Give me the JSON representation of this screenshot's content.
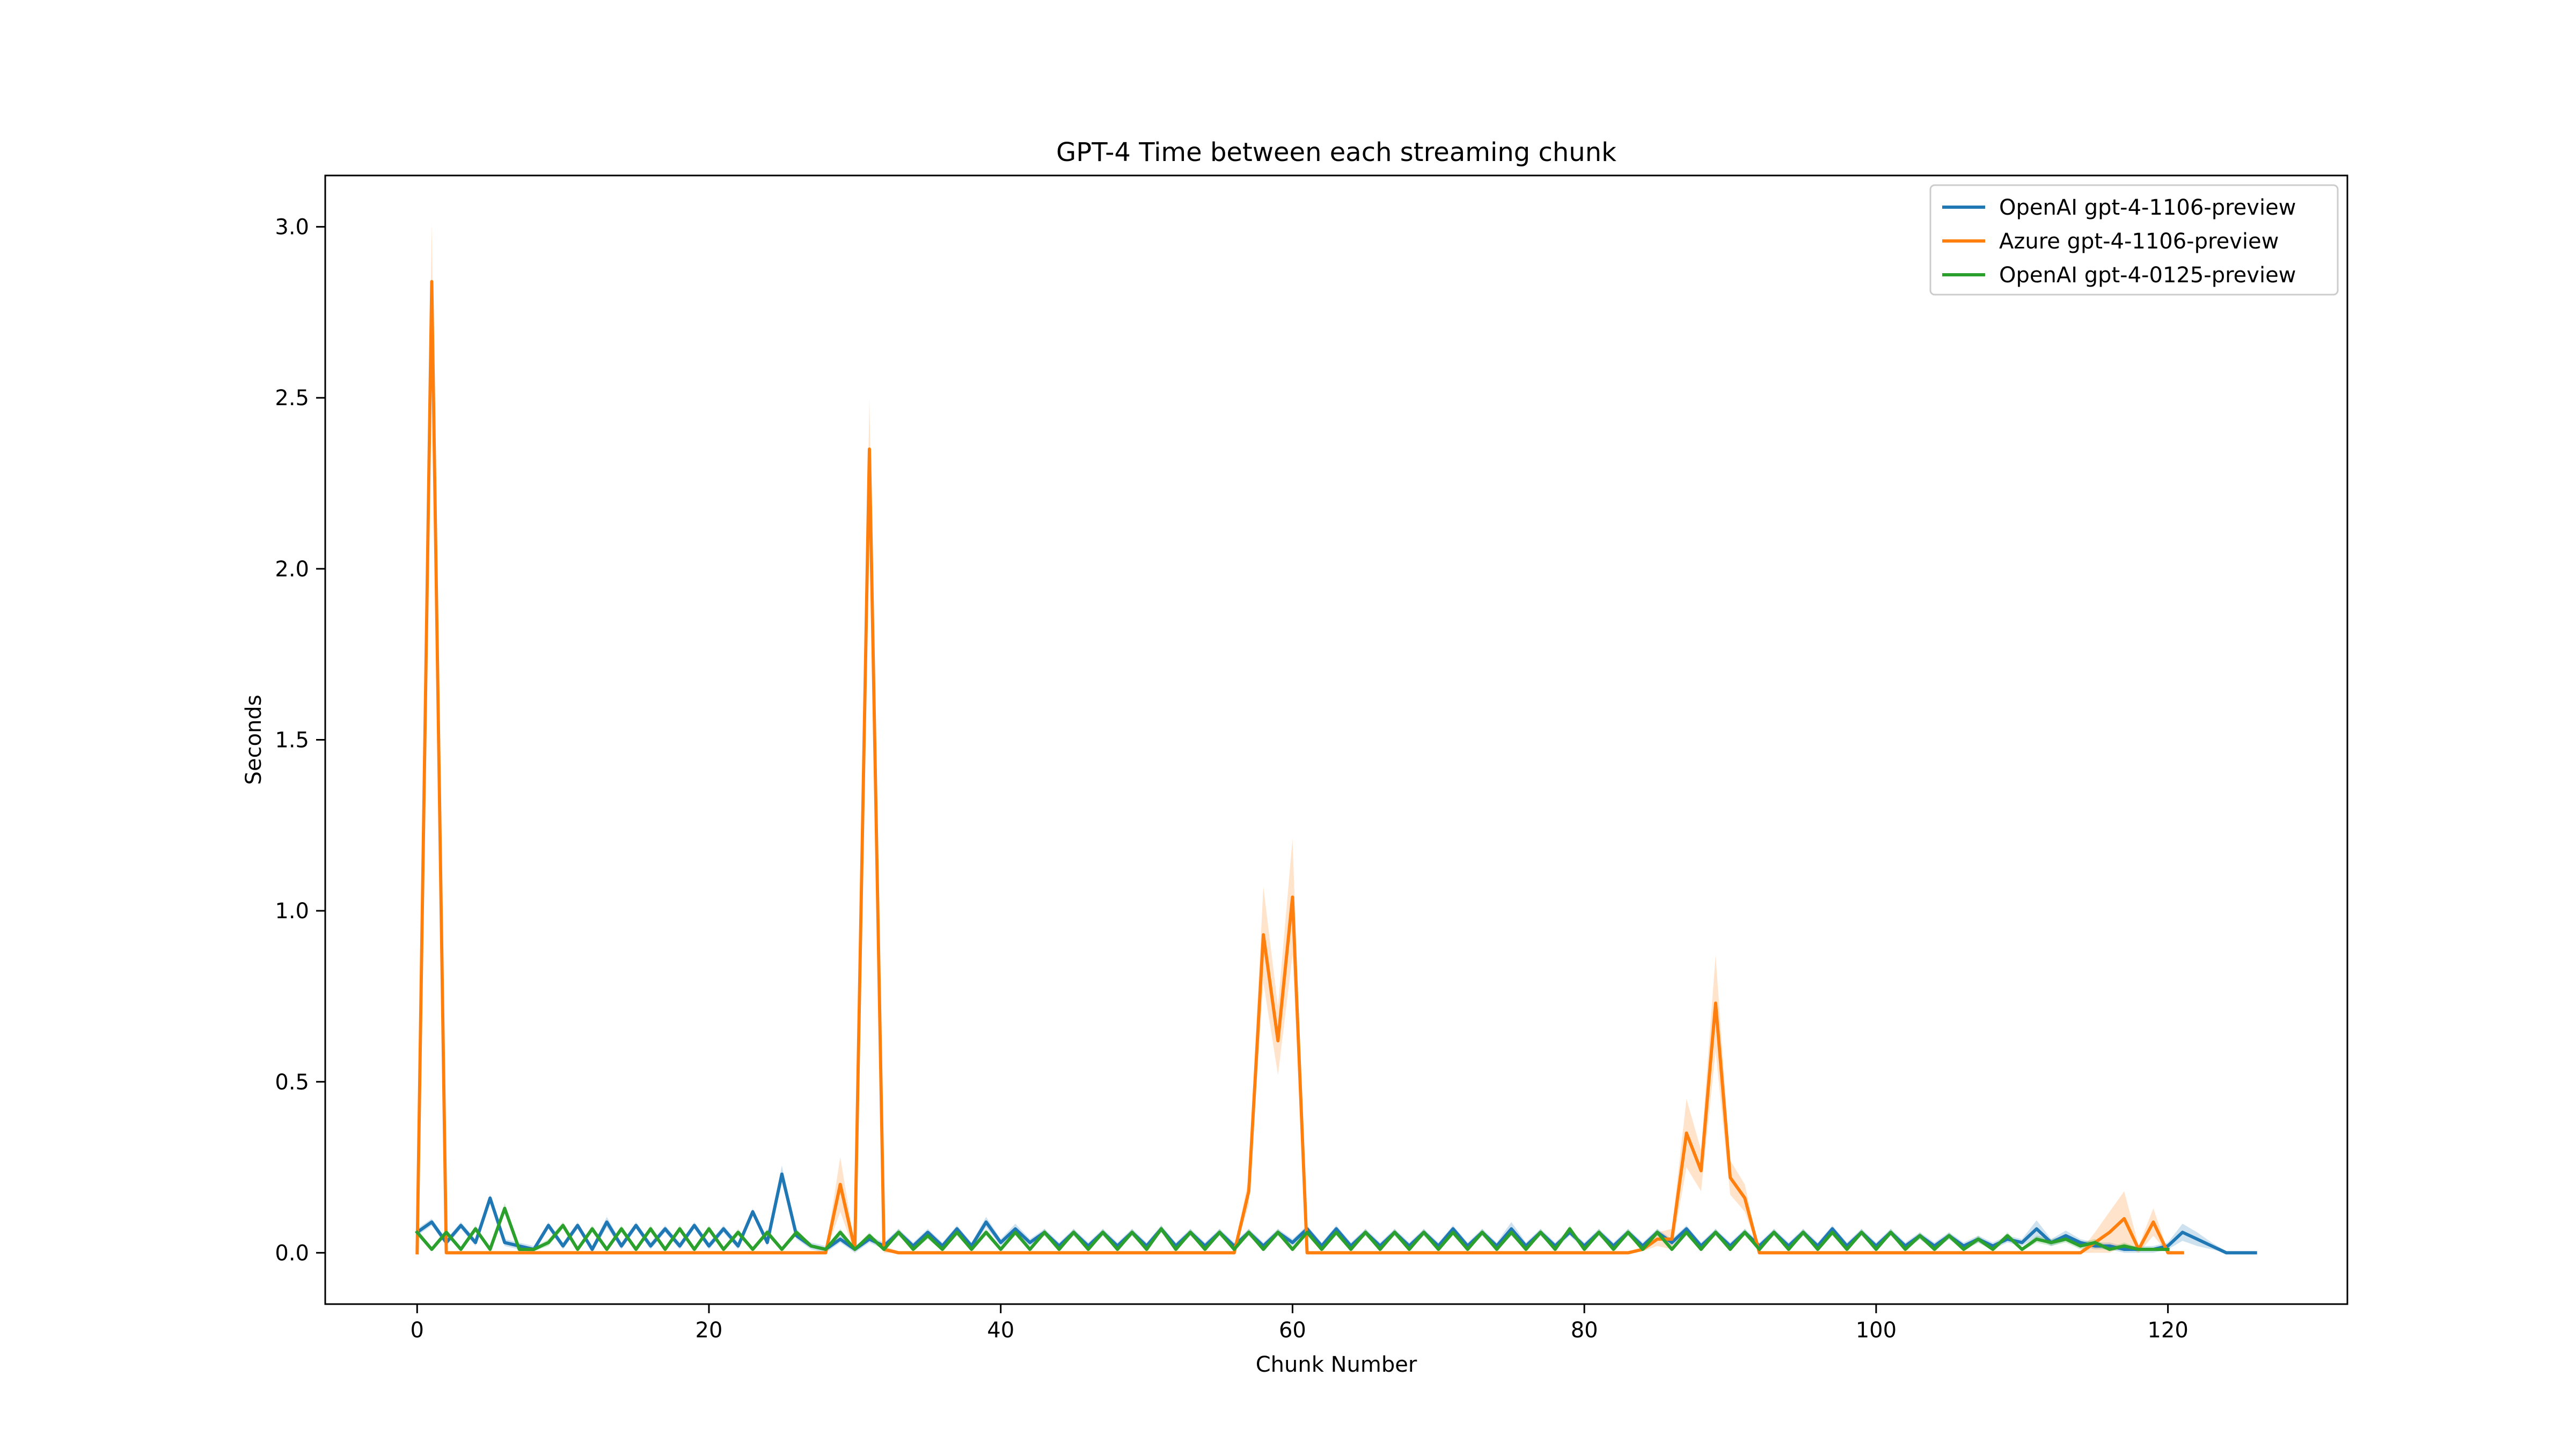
{
  "chart_data": {
    "type": "line",
    "title": "GPT-4 Time between each streaming chunk",
    "xlabel": "Chunk Number",
    "ylabel": "Seconds",
    "xlim": [
      -6.3,
      132.3
    ],
    "ylim": [
      -0.15,
      3.15
    ],
    "xticks": [
      0,
      20,
      40,
      60,
      80,
      100,
      120
    ],
    "yticks": [
      0.0,
      0.5,
      1.0,
      1.5,
      2.0,
      2.5,
      3.0
    ],
    "xtick_labels": [
      "0",
      "20",
      "40",
      "60",
      "80",
      "100",
      "120"
    ],
    "ytick_labels": [
      "0.0",
      "0.5",
      "1.0",
      "1.5",
      "2.0",
      "2.5",
      "3.0"
    ],
    "legend_position": "top-right",
    "grid": false,
    "series": [
      {
        "name": "OpenAI gpt-4-1106-preview",
        "color": "#1f77b4",
        "x": [
          0,
          1,
          2,
          3,
          4,
          5,
          6,
          7,
          8,
          9,
          10,
          11,
          12,
          13,
          14,
          15,
          16,
          17,
          18,
          19,
          20,
          21,
          22,
          23,
          24,
          25,
          26,
          27,
          28,
          29,
          30,
          31,
          32,
          33,
          34,
          35,
          36,
          37,
          38,
          39,
          40,
          41,
          42,
          43,
          44,
          45,
          46,
          47,
          48,
          49,
          50,
          51,
          52,
          53,
          54,
          55,
          56,
          57,
          58,
          59,
          60,
          61,
          62,
          63,
          64,
          65,
          66,
          67,
          68,
          69,
          70,
          71,
          72,
          73,
          74,
          75,
          76,
          77,
          78,
          79,
          80,
          81,
          82,
          83,
          84,
          85,
          86,
          87,
          88,
          89,
          90,
          91,
          92,
          93,
          94,
          95,
          96,
          97,
          98,
          99,
          100,
          101,
          102,
          103,
          104,
          105,
          106,
          107,
          108,
          109,
          110,
          111,
          112,
          113,
          114,
          115,
          116,
          117,
          118,
          119,
          120,
          121,
          122,
          123,
          124,
          125,
          126
        ],
        "values": [
          0.06,
          0.09,
          0.03,
          0.08,
          0.03,
          0.16,
          0.03,
          0.02,
          0.01,
          0.08,
          0.02,
          0.08,
          0.01,
          0.09,
          0.02,
          0.08,
          0.02,
          0.07,
          0.02,
          0.08,
          0.02,
          0.07,
          0.02,
          0.12,
          0.03,
          0.23,
          0.05,
          0.02,
          0.01,
          0.04,
          0.01,
          0.04,
          0.02,
          0.06,
          0.02,
          0.06,
          0.02,
          0.07,
          0.02,
          0.09,
          0.03,
          0.07,
          0.03,
          0.06,
          0.02,
          0.06,
          0.02,
          0.06,
          0.02,
          0.06,
          0.02,
          0.07,
          0.02,
          0.06,
          0.02,
          0.06,
          0.02,
          0.06,
          0.02,
          0.06,
          0.03,
          0.07,
          0.02,
          0.07,
          0.02,
          0.06,
          0.02,
          0.06,
          0.02,
          0.06,
          0.02,
          0.07,
          0.02,
          0.06,
          0.02,
          0.07,
          0.02,
          0.06,
          0.02,
          0.06,
          0.02,
          0.06,
          0.02,
          0.06,
          0.02,
          0.06,
          0.03,
          0.07,
          0.02,
          0.06,
          0.02,
          0.06,
          0.02,
          0.06,
          0.02,
          0.06,
          0.02,
          0.07,
          0.02,
          0.06,
          0.02,
          0.06,
          0.02,
          0.05,
          0.02,
          0.05,
          0.02,
          0.04,
          0.02,
          0.04,
          0.03,
          0.07,
          0.03,
          0.05,
          0.03,
          0.02,
          0.02,
          0.01,
          0.01,
          0.01,
          0.02,
          0.06,
          0.04,
          0.02,
          0.0,
          0.0,
          0.0
        ],
        "band": [
          0.01,
          0.01,
          0.01,
          0.01,
          0.01,
          0.01,
          0.01,
          0.01,
          0.01,
          0.01,
          0.01,
          0.01,
          0.01,
          0.015,
          0.01,
          0.01,
          0.01,
          0.01,
          0.01,
          0.01,
          0.01,
          0.01,
          0.01,
          0.01,
          0.01,
          0.025,
          0.01,
          0.01,
          0.01,
          0.01,
          0.01,
          0.01,
          0.01,
          0.01,
          0.01,
          0.01,
          0.01,
          0.01,
          0.01,
          0.015,
          0.01,
          0.015,
          0.01,
          0.01,
          0.01,
          0.01,
          0.01,
          0.01,
          0.01,
          0.01,
          0.01,
          0.01,
          0.01,
          0.01,
          0.01,
          0.01,
          0.01,
          0.01,
          0.01,
          0.01,
          0.01,
          0.01,
          0.01,
          0.01,
          0.01,
          0.01,
          0.01,
          0.01,
          0.01,
          0.01,
          0.01,
          0.01,
          0.01,
          0.01,
          0.01,
          0.02,
          0.01,
          0.01,
          0.01,
          0.01,
          0.01,
          0.01,
          0.01,
          0.01,
          0.01,
          0.01,
          0.01,
          0.01,
          0.01,
          0.01,
          0.01,
          0.01,
          0.01,
          0.01,
          0.01,
          0.01,
          0.01,
          0.01,
          0.01,
          0.01,
          0.01,
          0.01,
          0.01,
          0.01,
          0.01,
          0.01,
          0.01,
          0.01,
          0.01,
          0.01,
          0.01,
          0.025,
          0.01,
          0.015,
          0.01,
          0.01,
          0.01,
          0.01,
          0.01,
          0.01,
          0.01,
          0.025,
          0.02,
          0.01,
          0.005,
          0.005,
          0.005
        ]
      },
      {
        "name": "Azure gpt-4-1106-preview",
        "color": "#ff7f0e",
        "x": [
          0,
          1,
          2,
          3,
          4,
          5,
          6,
          7,
          8,
          9,
          10,
          11,
          12,
          13,
          14,
          15,
          16,
          17,
          18,
          19,
          20,
          21,
          22,
          23,
          24,
          25,
          26,
          27,
          28,
          29,
          30,
          31,
          32,
          33,
          34,
          35,
          36,
          37,
          38,
          39,
          40,
          41,
          42,
          43,
          44,
          45,
          46,
          47,
          48,
          49,
          50,
          51,
          52,
          53,
          54,
          55,
          56,
          57,
          58,
          59,
          60,
          61,
          62,
          63,
          64,
          65,
          66,
          67,
          68,
          69,
          70,
          71,
          72,
          73,
          74,
          75,
          76,
          77,
          78,
          79,
          80,
          81,
          82,
          83,
          84,
          85,
          86,
          87,
          88,
          89,
          90,
          91,
          92,
          93,
          94,
          95,
          96,
          97,
          98,
          99,
          100,
          101,
          102,
          103,
          104,
          105,
          106,
          107,
          108,
          109,
          110,
          111,
          112,
          113,
          114,
          115,
          116,
          117,
          118,
          119,
          120,
          121
        ],
        "values": [
          0.0,
          2.84,
          0.0,
          0.0,
          0.0,
          0.0,
          0.0,
          0.0,
          0.0,
          0.0,
          0.0,
          0.0,
          0.0,
          0.0,
          0.0,
          0.0,
          0.0,
          0.0,
          0.0,
          0.0,
          0.0,
          0.0,
          0.0,
          0.0,
          0.0,
          0.0,
          0.0,
          0.0,
          0.0,
          0.2,
          0.01,
          2.35,
          0.01,
          0.0,
          0.0,
          0.0,
          0.0,
          0.0,
          0.0,
          0.0,
          0.0,
          0.0,
          0.0,
          0.0,
          0.0,
          0.0,
          0.0,
          0.0,
          0.0,
          0.0,
          0.0,
          0.0,
          0.0,
          0.0,
          0.0,
          0.0,
          0.0,
          0.18,
          0.93,
          0.62,
          1.04,
          0.0,
          0.0,
          0.0,
          0.0,
          0.0,
          0.0,
          0.0,
          0.0,
          0.0,
          0.0,
          0.0,
          0.0,
          0.0,
          0.0,
          0.0,
          0.0,
          0.0,
          0.0,
          0.0,
          0.0,
          0.0,
          0.0,
          0.0,
          0.01,
          0.04,
          0.04,
          0.35,
          0.24,
          0.73,
          0.22,
          0.16,
          0.0,
          0.0,
          0.0,
          0.0,
          0.0,
          0.0,
          0.0,
          0.0,
          0.0,
          0.0,
          0.0,
          0.0,
          0.0,
          0.0,
          0.0,
          0.0,
          0.0,
          0.0,
          0.0,
          0.0,
          0.0,
          0.0,
          0.0,
          0.03,
          0.06,
          0.1,
          0.01,
          0.09,
          0.0,
          0.0
        ],
        "band": [
          0.01,
          0.17,
          0.005,
          0.005,
          0.005,
          0.005,
          0.005,
          0.005,
          0.005,
          0.005,
          0.005,
          0.005,
          0.005,
          0.005,
          0.005,
          0.005,
          0.005,
          0.005,
          0.005,
          0.005,
          0.005,
          0.005,
          0.005,
          0.005,
          0.005,
          0.005,
          0.005,
          0.005,
          0.005,
          0.08,
          0.01,
          0.15,
          0.01,
          0.005,
          0.005,
          0.005,
          0.005,
          0.005,
          0.005,
          0.005,
          0.005,
          0.005,
          0.005,
          0.005,
          0.005,
          0.005,
          0.005,
          0.005,
          0.005,
          0.005,
          0.005,
          0.005,
          0.005,
          0.005,
          0.005,
          0.005,
          0.005,
          0.04,
          0.14,
          0.1,
          0.17,
          0.005,
          0.005,
          0.005,
          0.005,
          0.005,
          0.005,
          0.005,
          0.005,
          0.005,
          0.005,
          0.005,
          0.005,
          0.005,
          0.005,
          0.005,
          0.005,
          0.005,
          0.005,
          0.005,
          0.005,
          0.005,
          0.005,
          0.005,
          0.005,
          0.02,
          0.03,
          0.1,
          0.06,
          0.14,
          0.05,
          0.04,
          0.005,
          0.005,
          0.005,
          0.005,
          0.005,
          0.005,
          0.005,
          0.005,
          0.005,
          0.005,
          0.005,
          0.005,
          0.005,
          0.005,
          0.005,
          0.005,
          0.005,
          0.005,
          0.005,
          0.005,
          0.005,
          0.005,
          0.005,
          0.03,
          0.06,
          0.08,
          0.01,
          0.04,
          0.005,
          0.005
        ]
      },
      {
        "name": "OpenAI gpt-4-0125-preview",
        "color": "#2ca02c",
        "x": [
          0,
          1,
          2,
          3,
          4,
          5,
          6,
          7,
          8,
          9,
          10,
          11,
          12,
          13,
          14,
          15,
          16,
          17,
          18,
          19,
          20,
          21,
          22,
          23,
          24,
          25,
          26,
          27,
          28,
          29,
          30,
          31,
          32,
          33,
          34,
          35,
          36,
          37,
          38,
          39,
          40,
          41,
          42,
          43,
          44,
          45,
          46,
          47,
          48,
          49,
          50,
          51,
          52,
          53,
          54,
          55,
          56,
          57,
          58,
          59,
          60,
          61,
          62,
          63,
          64,
          65,
          66,
          67,
          68,
          69,
          70,
          71,
          72,
          73,
          74,
          75,
          76,
          77,
          78,
          79,
          80,
          81,
          82,
          83,
          84,
          85,
          86,
          87,
          88,
          89,
          90,
          91,
          92,
          93,
          94,
          95,
          96,
          97,
          98,
          99,
          100,
          101,
          102,
          103,
          104,
          105,
          106,
          107,
          108,
          109,
          110,
          111,
          112,
          113,
          114,
          115,
          116,
          117,
          118,
          119,
          120
        ],
        "values": [
          0.06,
          0.01,
          0.06,
          0.01,
          0.07,
          0.01,
          0.13,
          0.01,
          0.01,
          0.03,
          0.08,
          0.01,
          0.07,
          0.01,
          0.07,
          0.01,
          0.07,
          0.01,
          0.07,
          0.01,
          0.07,
          0.01,
          0.06,
          0.01,
          0.06,
          0.01,
          0.06,
          0.02,
          0.01,
          0.06,
          0.01,
          0.05,
          0.01,
          0.06,
          0.01,
          0.05,
          0.01,
          0.06,
          0.01,
          0.06,
          0.01,
          0.06,
          0.01,
          0.06,
          0.01,
          0.06,
          0.01,
          0.06,
          0.01,
          0.06,
          0.01,
          0.07,
          0.01,
          0.06,
          0.01,
          0.06,
          0.01,
          0.06,
          0.01,
          0.06,
          0.01,
          0.06,
          0.01,
          0.06,
          0.01,
          0.06,
          0.01,
          0.06,
          0.01,
          0.06,
          0.01,
          0.06,
          0.01,
          0.06,
          0.01,
          0.06,
          0.01,
          0.06,
          0.01,
          0.07,
          0.01,
          0.06,
          0.01,
          0.06,
          0.01,
          0.06,
          0.01,
          0.06,
          0.01,
          0.06,
          0.01,
          0.06,
          0.01,
          0.06,
          0.01,
          0.06,
          0.01,
          0.06,
          0.01,
          0.06,
          0.01,
          0.06,
          0.01,
          0.05,
          0.01,
          0.05,
          0.01,
          0.04,
          0.01,
          0.05,
          0.01,
          0.04,
          0.03,
          0.04,
          0.02,
          0.03,
          0.01,
          0.02,
          0.01,
          0.01,
          0.01
        ],
        "band": [
          0.01,
          0.005,
          0.01,
          0.005,
          0.01,
          0.005,
          0.015,
          0.005,
          0.005,
          0.01,
          0.01,
          0.005,
          0.01,
          0.005,
          0.01,
          0.005,
          0.01,
          0.005,
          0.01,
          0.005,
          0.01,
          0.005,
          0.01,
          0.005,
          0.01,
          0.005,
          0.01,
          0.005,
          0.005,
          0.01,
          0.005,
          0.01,
          0.005,
          0.01,
          0.005,
          0.01,
          0.005,
          0.01,
          0.005,
          0.01,
          0.005,
          0.01,
          0.005,
          0.01,
          0.005,
          0.01,
          0.005,
          0.01,
          0.005,
          0.01,
          0.005,
          0.01,
          0.005,
          0.01,
          0.005,
          0.01,
          0.005,
          0.01,
          0.005,
          0.01,
          0.005,
          0.01,
          0.005,
          0.01,
          0.005,
          0.01,
          0.005,
          0.01,
          0.005,
          0.01,
          0.005,
          0.01,
          0.005,
          0.01,
          0.005,
          0.01,
          0.005,
          0.01,
          0.005,
          0.01,
          0.005,
          0.01,
          0.005,
          0.01,
          0.005,
          0.01,
          0.005,
          0.01,
          0.005,
          0.01,
          0.005,
          0.01,
          0.005,
          0.01,
          0.005,
          0.01,
          0.005,
          0.01,
          0.005,
          0.01,
          0.005,
          0.01,
          0.005,
          0.01,
          0.005,
          0.01,
          0.005,
          0.01,
          0.005,
          0.01,
          0.005,
          0.01,
          0.01,
          0.01,
          0.01,
          0.01,
          0.005,
          0.01,
          0.005,
          0.005,
          0.005
        ]
      }
    ]
  }
}
